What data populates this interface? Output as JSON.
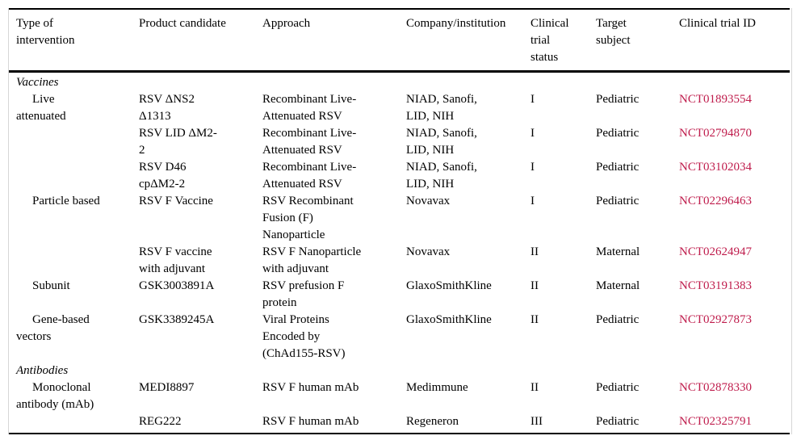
{
  "page": {
    "background": "#ffffff",
    "text_color": "#000000",
    "rule_color": "#000000",
    "side_rule_color": "#d6d6d6"
  },
  "table": {
    "link_color": "#bf1c4c",
    "columns": [
      {
        "key": "type-of-intervention",
        "label": "Type of\nintervention"
      },
      {
        "key": "product-candidate",
        "label": "Product candidate"
      },
      {
        "key": "approach",
        "label": "Approach"
      },
      {
        "key": "company-institution",
        "label": "Company/institution"
      },
      {
        "key": "clinical-trial-status",
        "label": "Clinical\ntrial\nstatus"
      },
      {
        "key": "target-subject",
        "label": "Target\nsubject"
      },
      {
        "key": "clinical-trial-id",
        "label": "Clinical trial ID"
      }
    ],
    "rows": [
      {
        "kind": "section",
        "label": "Vaccines"
      },
      {
        "kind": "data",
        "cells": [
          "Live\nattenuated",
          "RSV ΔNS2\nΔ1313",
          "Recombinant Live-\nAttenuated RSV",
          "NIAD, Sanofi,\nLID, NIH",
          "I",
          "Pediatric",
          "NCT01893554"
        ]
      },
      {
        "kind": "data",
        "cells": [
          "",
          "RSV LID ΔM2-\n2",
          "Recombinant Live-\nAttenuated RSV",
          "NIAD, Sanofi,\nLID, NIH",
          "I",
          "Pediatric",
          "NCT02794870"
        ]
      },
      {
        "kind": "data",
        "cells": [
          "",
          "RSV D46\ncpΔM2-2",
          "Recombinant Live-\nAttenuated RSV",
          "NIAD, Sanofi,\nLID, NIH",
          "I",
          "Pediatric",
          "NCT03102034"
        ]
      },
      {
        "kind": "data",
        "cells": [
          "Particle based",
          "RSV F Vaccine",
          "RSV Recombinant\nFusion (F)\nNanoparticle",
          "Novavax",
          "I",
          "Pediatric",
          "NCT02296463"
        ]
      },
      {
        "kind": "data",
        "cells": [
          "",
          "RSV F vaccine\nwith adjuvant",
          "RSV F Nanoparticle\nwith adjuvant",
          "Novavax",
          "II",
          "Maternal",
          "NCT02624947"
        ]
      },
      {
        "kind": "data",
        "cells": [
          "Subunit",
          "GSK3003891A",
          "RSV prefusion F\nprotein",
          "GlaxoSmithKline",
          "II",
          "Maternal",
          "NCT03191383"
        ]
      },
      {
        "kind": "data",
        "cells": [
          "Gene-based\nvectors",
          "GSK3389245A",
          "Viral Proteins\nEncoded by\n(ChAd155-RSV)",
          "GlaxoSmithKline",
          "II",
          "Pediatric",
          "NCT02927873"
        ]
      },
      {
        "kind": "section",
        "label": "Antibodies"
      },
      {
        "kind": "data",
        "cells": [
          "Monoclonal\nantibody (mAb)",
          "MEDI8897",
          "RSV F human mAb",
          "Medimmune",
          "II",
          "Pediatric",
          "NCT02878330"
        ]
      },
      {
        "kind": "data",
        "cells": [
          "",
          "REG222",
          "RSV F human mAb",
          "Regeneron",
          "III",
          "Pediatric",
          "NCT02325791"
        ]
      }
    ]
  }
}
